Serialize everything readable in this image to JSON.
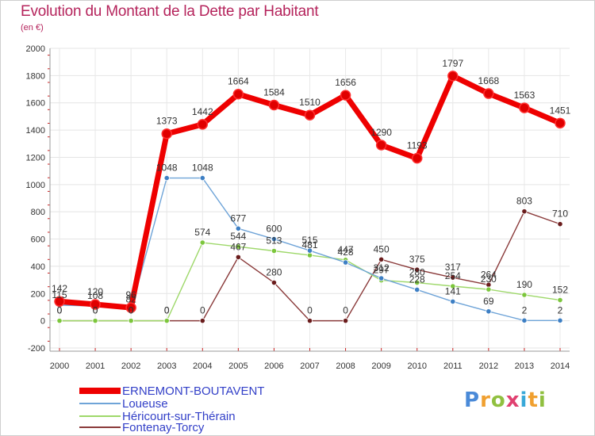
{
  "header": {
    "title": "Evolution du Montant de la Dette par Habitant",
    "subtitle": "(en €)"
  },
  "logo": {
    "text": "Proxiti"
  },
  "chart_data": {
    "type": "line",
    "title": "Evolution du Montant de la Dette par Habitant",
    "subtitle": "(en €)",
    "xlabel": "",
    "ylabel": "",
    "x": [
      2000,
      2001,
      2002,
      2003,
      2004,
      2005,
      2006,
      2007,
      2008,
      2009,
      2010,
      2011,
      2012,
      2013,
      2014
    ],
    "x_tick_labels": [
      "2000",
      "2001",
      "2002",
      "2003",
      "2004",
      "2005",
      "2006",
      "2007",
      "2008",
      "2009",
      "2010",
      "2011",
      "2012",
      "2013",
      "2014"
    ],
    "ylim": [
      -200,
      2000
    ],
    "y_ticks": [
      -200,
      0,
      200,
      400,
      600,
      800,
      1000,
      1200,
      1400,
      1600,
      1800,
      2000
    ],
    "y_tick_labels": [
      "-200",
      "0",
      "200",
      "400",
      "600",
      "800",
      "1000",
      "1200",
      "1400",
      "1600",
      "1800",
      "2000"
    ],
    "grid": true,
    "legend_position": "bottom-left",
    "series": [
      {
        "name": "ERNEMONT-BOUTAVENT",
        "color": "#ee0000",
        "marker_color": "#e00000",
        "values": [
          142,
          120,
          96,
          1373,
          1442,
          1664,
          1584,
          1510,
          1656,
          1290,
          1193,
          1797,
          1668,
          1563,
          1451
        ],
        "labels": [
          "142",
          "120",
          "96",
          "1373",
          "1442",
          "1664",
          "1584",
          "1510",
          "1656",
          "1290",
          "1193",
          "1797",
          "1668",
          "1563",
          "1451"
        ]
      },
      {
        "name": "Loueuse",
        "color": "#6fa4d8",
        "marker_color": "#3d7fc4",
        "values": [
          115,
          108,
          82,
          1048,
          1048,
          677,
          600,
          515,
          428,
          312,
          228,
          141,
          69,
          2,
          2
        ],
        "labels": [
          "115",
          "108",
          "82",
          "1048",
          "1048",
          "677",
          "600",
          "515",
          "428",
          "312",
          "228",
          "141",
          "69",
          "2",
          "2"
        ]
      },
      {
        "name": "Héricourt-sur-Thérain",
        "color": "#9ed86a",
        "marker_color": "#7cc63c",
        "values": [
          0,
          0,
          0,
          0,
          574,
          544,
          513,
          481,
          447,
          297,
          280,
          254,
          230,
          190,
          152
        ],
        "labels": [
          "0",
          "0",
          "0",
          "0",
          "574",
          "544",
          "513",
          "481",
          "447",
          "297",
          "280",
          "254",
          "230",
          "190",
          "152"
        ]
      },
      {
        "name": "Fontenay-Torcy",
        "color": "#8a3a3a",
        "marker_color": "#6a1c1c",
        "values": [
          0,
          0,
          0,
          0,
          0,
          467,
          280,
          0,
          0,
          450,
          375,
          317,
          264,
          803,
          710
        ],
        "labels": [
          "0",
          "0",
          "0",
          "0",
          "0",
          "467",
          "280",
          "0",
          "0",
          "450",
          "375",
          "317",
          "264",
          "803",
          "710"
        ]
      }
    ]
  }
}
